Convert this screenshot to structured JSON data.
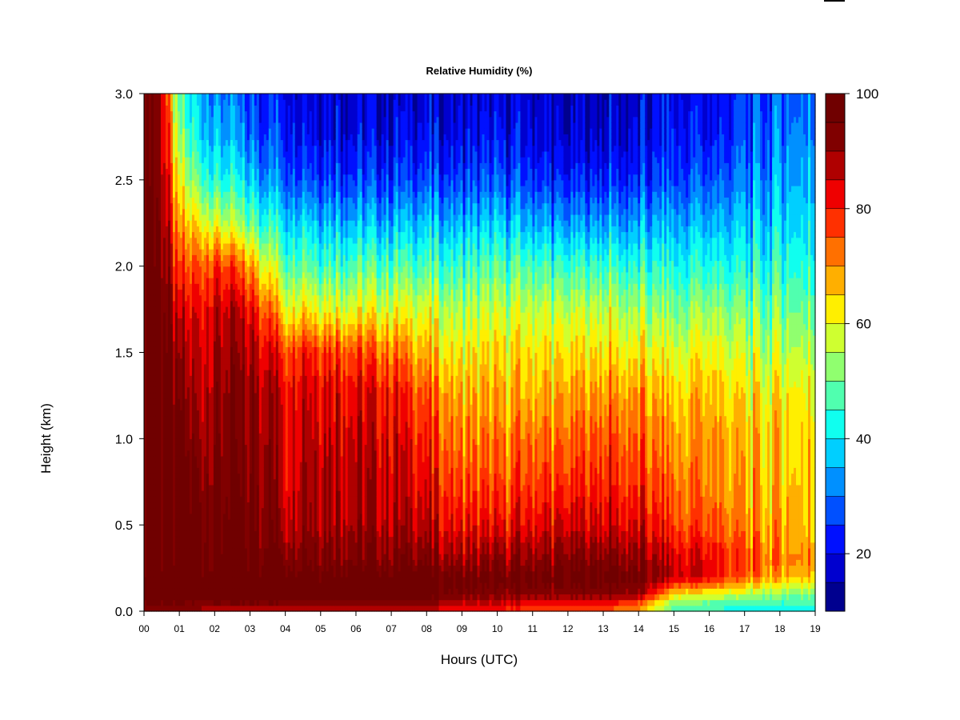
{
  "chart_data": {
    "type": "heatmap",
    "title": "Relative Humidity (%)",
    "xlabel": "Hours (UTC)",
    "ylabel": "Height (km)",
    "xlim": [
      0,
      19
    ],
    "ylim": [
      0,
      3
    ],
    "x_ticks": [
      "00",
      "01",
      "02",
      "03",
      "04",
      "05",
      "06",
      "07",
      "08",
      "09",
      "10",
      "11",
      "12",
      "13",
      "14",
      "15",
      "16",
      "17",
      "18",
      "19"
    ],
    "y_ticks": [
      "0.0",
      "0.5",
      "1.0",
      "1.5",
      "2.0",
      "2.5",
      "3.0"
    ],
    "y_tick_values": [
      0,
      0.5,
      1.0,
      1.5,
      2.0,
      2.5,
      3.0
    ],
    "colorbar": {
      "range": [
        10,
        100
      ],
      "step": 5,
      "tick_values": [
        20,
        40,
        60,
        80,
        100
      ],
      "tick_labels": [
        "20",
        "40",
        "60",
        "80",
        "100"
      ],
      "colors": [
        "#00008f",
        "#0000cf",
        "#0010ff",
        "#0050ff",
        "#0090ff",
        "#00cfff",
        "#10ffef",
        "#50ffaf",
        "#90ff6f",
        "#cfff30",
        "#ffef00",
        "#ffaf00",
        "#ff7000",
        "#ff3000",
        "#ef0000",
        "#af0000",
        "#800000",
        "#700000"
      ]
    },
    "grid": false,
    "profile_heights_km": [
      0.0,
      0.05,
      0.1,
      0.2,
      0.3,
      0.5,
      0.75,
      1.0,
      1.25,
      1.5,
      1.75,
      2.0,
      2.25,
      2.5,
      2.75,
      3.0
    ],
    "profiles": [
      {
        "hour": 0.0,
        "rh": [
          88,
          96,
          100,
          100,
          100,
          100,
          100,
          100,
          100,
          100,
          100,
          100,
          100,
          100,
          100,
          100
        ]
      },
      {
        "hour": 0.5,
        "rh": [
          88,
          96,
          100,
          100,
          100,
          100,
          100,
          100,
          100,
          100,
          98,
          96,
          94,
          92,
          90,
          88
        ]
      },
      {
        "hour": 1.0,
        "rh": [
          88,
          95,
          100,
          100,
          100,
          100,
          100,
          97,
          93,
          88,
          82,
          74,
          66,
          58,
          50,
          45
        ]
      },
      {
        "hour": 1.5,
        "rh": [
          88,
          95,
          100,
          100,
          100,
          100,
          97,
          93,
          90,
          88,
          85,
          78,
          66,
          52,
          44,
          40
        ]
      },
      {
        "hour": 2.0,
        "rh": [
          87,
          95,
          100,
          100,
          100,
          98,
          96,
          94,
          92,
          90,
          87,
          80,
          60,
          45,
          38,
          33
        ]
      },
      {
        "hour": 2.5,
        "rh": [
          87,
          95,
          100,
          100,
          100,
          97,
          95,
          94,
          92,
          90,
          86,
          76,
          55,
          42,
          34,
          30
        ]
      },
      {
        "hour": 3.0,
        "rh": [
          87,
          95,
          100,
          100,
          99,
          96,
          95,
          93,
          92,
          89,
          83,
          70,
          50,
          38,
          30,
          26
        ]
      },
      {
        "hour": 3.5,
        "rh": [
          87,
          95,
          100,
          100,
          98,
          95,
          93,
          92,
          90,
          85,
          75,
          60,
          45,
          33,
          27,
          24
        ]
      },
      {
        "hour": 4.0,
        "rh": [
          87,
          94,
          100,
          100,
          96,
          88,
          86,
          85,
          84,
          78,
          62,
          50,
          40,
          30,
          25,
          22
        ]
      },
      {
        "hour": 4.5,
        "rh": [
          86,
          94,
          100,
          100,
          97,
          93,
          91,
          90,
          88,
          83,
          66,
          52,
          42,
          30,
          24,
          21
        ]
      },
      {
        "hour": 5.0,
        "rh": [
          86,
          94,
          100,
          100,
          96,
          92,
          90,
          88,
          86,
          80,
          62,
          48,
          38,
          28,
          22,
          20
        ]
      },
      {
        "hour": 6.0,
        "rh": [
          86,
          94,
          100,
          100,
          95,
          90,
          88,
          86,
          84,
          76,
          60,
          48,
          36,
          26,
          20,
          18
        ]
      },
      {
        "hour": 7.0,
        "rh": [
          85,
          93,
          100,
          100,
          95,
          89,
          87,
          85,
          82,
          74,
          60,
          48,
          36,
          26,
          20,
          17
        ]
      },
      {
        "hour": 8.0,
        "rh": [
          84,
          92,
          98,
          100,
          93,
          86,
          82,
          78,
          74,
          66,
          58,
          46,
          36,
          26,
          20,
          17
        ]
      },
      {
        "hour": 9.0,
        "rh": [
          80,
          86,
          94,
          96,
          90,
          82,
          76,
          72,
          68,
          62,
          55,
          46,
          36,
          26,
          20,
          18
        ]
      },
      {
        "hour": 10.0,
        "rh": [
          78,
          85,
          92,
          95,
          90,
          80,
          74,
          70,
          66,
          62,
          55,
          46,
          36,
          26,
          20,
          17
        ]
      },
      {
        "hour": 11.0,
        "rh": [
          77,
          84,
          92,
          96,
          90,
          82,
          76,
          72,
          66,
          62,
          56,
          46,
          34,
          24,
          18,
          16
        ]
      },
      {
        "hour": 12.0,
        "rh": [
          76,
          83,
          92,
          96,
          92,
          84,
          77,
          72,
          68,
          62,
          55,
          44,
          32,
          22,
          16,
          15
        ]
      },
      {
        "hour": 13.0,
        "rh": [
          74,
          82,
          93,
          98,
          94,
          85,
          80,
          76,
          70,
          64,
          57,
          46,
          34,
          24,
          18,
          16
        ]
      },
      {
        "hour": 14.0,
        "rh": [
          68,
          76,
          90,
          96,
          92,
          84,
          78,
          74,
          70,
          62,
          54,
          44,
          34,
          24,
          19,
          18
        ]
      },
      {
        "hour": 15.0,
        "rh": [
          46,
          52,
          64,
          86,
          84,
          76,
          72,
          68,
          64,
          58,
          50,
          42,
          34,
          26,
          22,
          20
        ]
      },
      {
        "hour": 16.0,
        "rh": [
          44,
          50,
          60,
          84,
          84,
          76,
          72,
          70,
          68,
          62,
          54,
          44,
          36,
          28,
          22,
          20
        ]
      },
      {
        "hour": 17.0,
        "rh": [
          42,
          48,
          56,
          74,
          76,
          70,
          67,
          66,
          62,
          56,
          50,
          42,
          36,
          30,
          26,
          24
        ]
      },
      {
        "hour": 18.0,
        "rh": [
          40,
          46,
          52,
          68,
          72,
          68,
          66,
          65,
          62,
          56,
          50,
          44,
          38,
          34,
          30,
          28
        ]
      },
      {
        "hour": 19.0,
        "rh": [
          40,
          46,
          52,
          66,
          70,
          66,
          65,
          64,
          62,
          56,
          50,
          44,
          40,
          36,
          33,
          30
        ]
      }
    ]
  }
}
